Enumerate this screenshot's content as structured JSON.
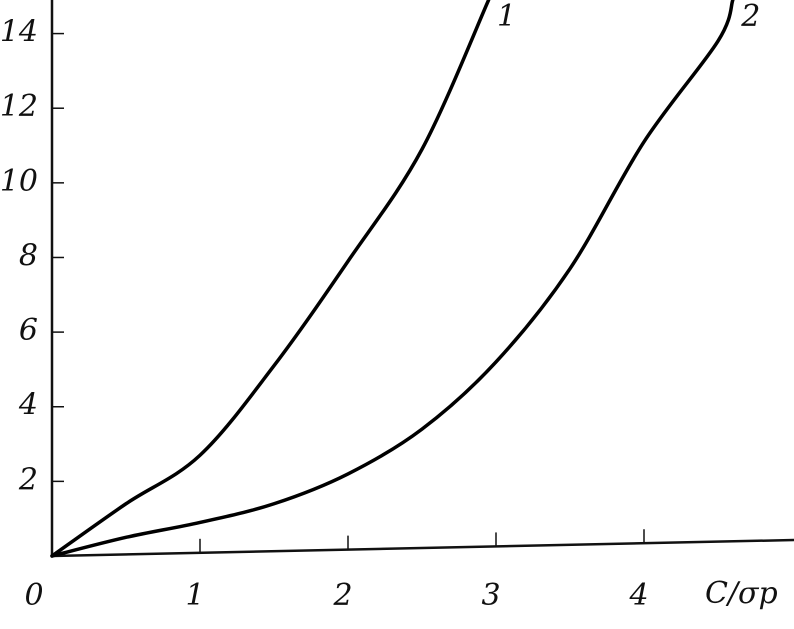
{
  "chart_data": {
    "type": "line",
    "x_label": "C/σp",
    "xlim": [
      0,
      5
    ],
    "ylim": [
      0,
      14.9
    ],
    "xticks": [
      0,
      1,
      2,
      3,
      4
    ],
    "yticks": [
      2,
      4,
      6,
      8,
      10,
      12,
      14
    ],
    "grid": false,
    "series": [
      {
        "name": "1",
        "color": "#000000",
        "x": [
          0,
          0.5,
          1,
          1.5,
          2,
          2.5,
          2.95
        ],
        "values": [
          0,
          1.4,
          2.7,
          5.1,
          7.9,
          10.9,
          14.9
        ]
      },
      {
        "name": "2",
        "color": "#000000",
        "x": [
          0,
          0.5,
          1,
          1.5,
          2,
          2.5,
          3,
          3.5,
          4,
          4.5,
          4.6
        ],
        "values": [
          0,
          0.5,
          0.9,
          1.4,
          2.2,
          3.4,
          5.2,
          7.7,
          11.1,
          13.8,
          14.9
        ]
      }
    ]
  }
}
